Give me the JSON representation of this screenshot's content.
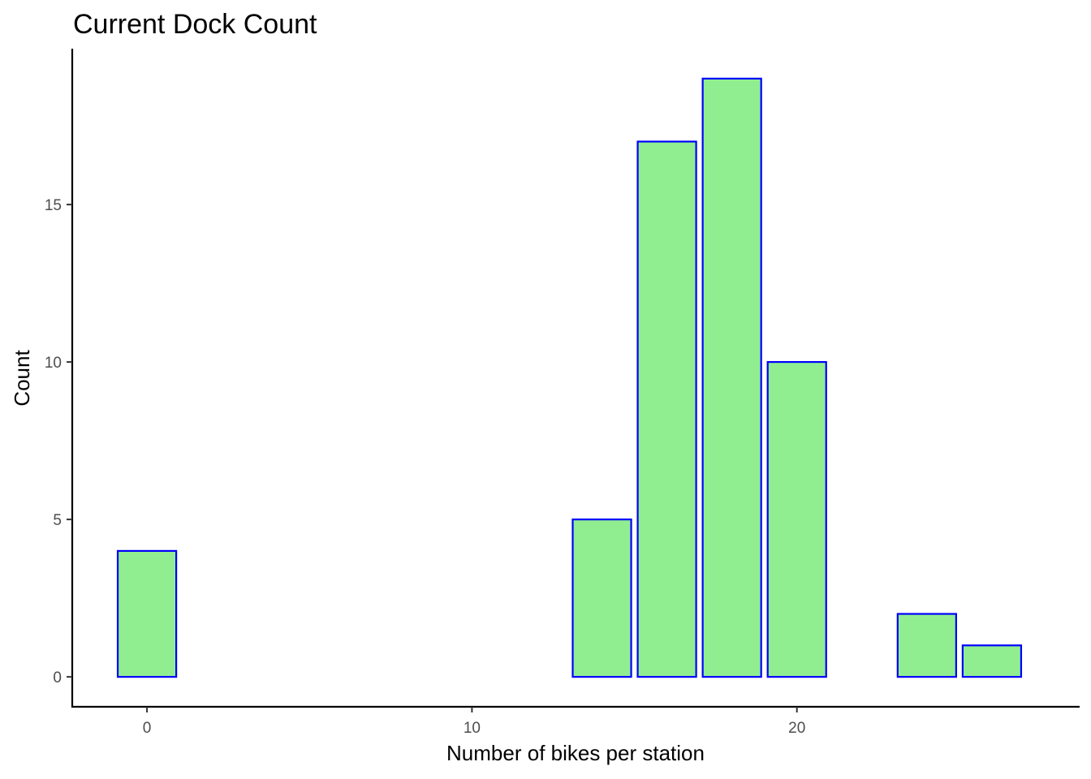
{
  "chart_data": {
    "type": "bar",
    "title": "Current Dock Count",
    "xlabel": "Number of bikes per station",
    "ylabel": "Count",
    "bin_width": 1.8,
    "bins": [
      {
        "center": 0,
        "count": 4
      },
      {
        "center": 14,
        "count": 5
      },
      {
        "center": 16,
        "count": 17
      },
      {
        "center": 18,
        "count": 19
      },
      {
        "center": 20,
        "count": 10
      },
      {
        "center": 24,
        "count": 2
      },
      {
        "center": 26,
        "count": 1
      }
    ],
    "xlim": [
      -2.3,
      28.7
    ],
    "ylim": [
      -0.95,
      19.95
    ],
    "x_ticks": [
      0,
      10,
      20
    ],
    "y_ticks": [
      0,
      5,
      10,
      15
    ],
    "grid": false,
    "legend": "none",
    "colors": {
      "fill": "#90EE90",
      "outline": "#0000FF"
    }
  }
}
